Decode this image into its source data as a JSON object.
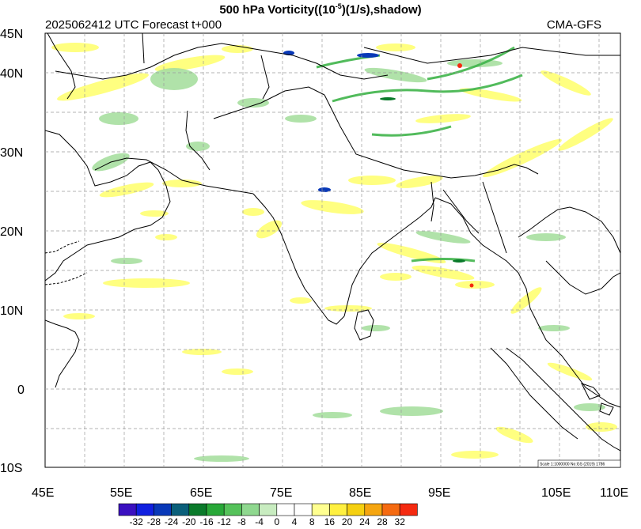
{
  "header": {
    "title_prefix": "500 hPa Vorticity((10",
    "title_exp": "-5",
    "title_suffix": ")(1/s),shadow)",
    "subtitle_left": "2025062412 UTC Forecast t+000",
    "subtitle_right": "CMA-GFS"
  },
  "lat_labels": [
    "45N",
    "40N",
    "30N",
    "20N",
    "10N",
    "0",
    "10S"
  ],
  "lon_labels": [
    "45E",
    "55E",
    "65E",
    "75E",
    "85E",
    "95E",
    "105E",
    "110E"
  ],
  "scale_note": "Scale 1:1000000 No:GS (2019) 1786",
  "colorbar": {
    "labels": [
      "-32",
      "-28",
      "-24",
      "-20",
      "-16",
      "-12",
      "-8",
      "-4",
      "0",
      "4",
      "8",
      "16",
      "20",
      "24",
      "28",
      "32"
    ],
    "colors": [
      "#3a10c0",
      "#1020e0",
      "#0838b8",
      "#0a5f7a",
      "#0a7a2a",
      "#28a838",
      "#55c25a",
      "#8fd88f",
      "#c8ecc0",
      "#ffffff",
      "#ffffff",
      "#ffff90",
      "#fff040",
      "#f5d010",
      "#f5a510",
      "#f56a10",
      "#f52a10"
    ]
  },
  "colors": {
    "coast": "#000000",
    "grid": "#9a9a9a",
    "pos_light": "#ffff7a",
    "neg_light": "#a8dfa0",
    "neg_mid": "#3fb44a"
  }
}
